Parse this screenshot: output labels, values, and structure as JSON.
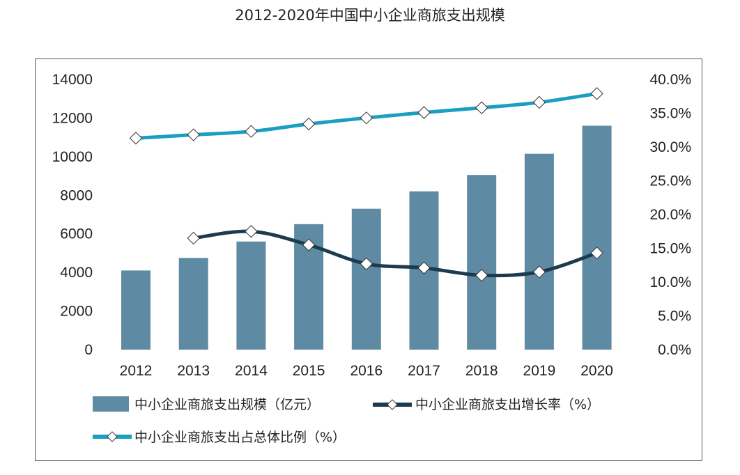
{
  "title": "2012-2020年中国中小企业商旅支出规模",
  "colors": {
    "bar": "#5f8aa3",
    "growth_line": "#1d3b4e",
    "share_line": "#1a9fc2",
    "marker_fill": "#ffffff"
  },
  "chart_data": {
    "type": "bar",
    "title": "2012-2020年中国中小企业商旅支出规模",
    "categories": [
      "2012",
      "2013",
      "2014",
      "2015",
      "2016",
      "2017",
      "2018",
      "2019",
      "2020"
    ],
    "y_left": {
      "ylim": [
        0,
        14000
      ],
      "ticks": [
        "0",
        "2000",
        "4000",
        "6000",
        "8000",
        "10000",
        "12000",
        "14000"
      ],
      "tick_values": [
        0,
        2000,
        4000,
        6000,
        8000,
        10000,
        12000,
        14000
      ]
    },
    "y_right": {
      "ylim": [
        0,
        40
      ],
      "ticks": [
        "0.0%",
        "5.0%",
        "10.0%",
        "15.0%",
        "20.0%",
        "25.0%",
        "30.0%",
        "35.0%",
        "40.0%"
      ],
      "tick_values": [
        0,
        5,
        10,
        15,
        20,
        25,
        30,
        35,
        40
      ]
    },
    "series": [
      {
        "name": "中小企业商旅支出规模（亿元）",
        "type": "bar",
        "axis": "left",
        "values": [
          4100,
          4750,
          5600,
          6500,
          7300,
          8200,
          9050,
          10150,
          11600
        ]
      },
      {
        "name": "中小企业商旅支出增长率（%）",
        "type": "line",
        "axis": "right",
        "values": [
          null,
          16.5,
          17.5,
          15.5,
          12.7,
          12.1,
          11.0,
          11.5,
          14.3
        ]
      },
      {
        "name": "中小企业商旅支出占总体比例（%）",
        "type": "line",
        "axis": "right",
        "values": [
          31.3,
          31.8,
          32.3,
          33.4,
          34.3,
          35.1,
          35.8,
          36.6,
          37.9
        ]
      }
    ],
    "legend_position": "bottom",
    "grid": false
  }
}
